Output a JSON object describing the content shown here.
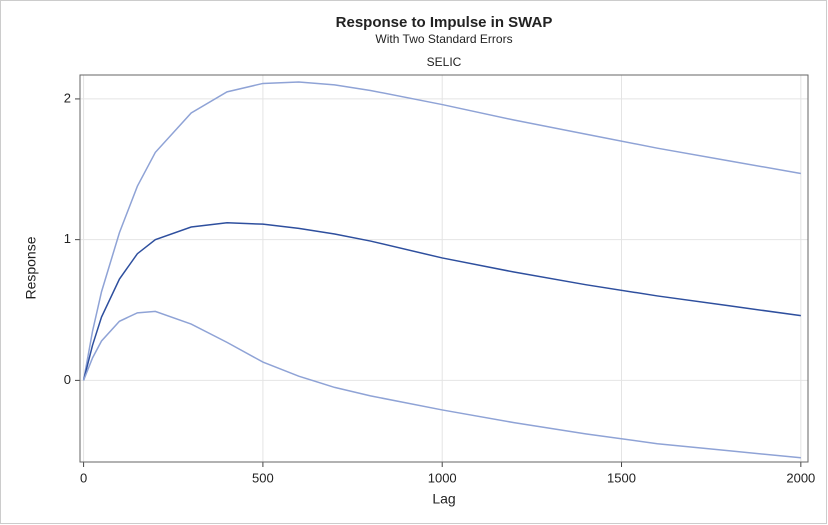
{
  "chart_data": {
    "type": "line",
    "title": "Response to Impulse in SWAP",
    "subtitle": "With Two Standard Errors",
    "panel_label": "SELIC",
    "x_label": "Lag",
    "y_label": "Response",
    "x": [
      0,
      25,
      50,
      100,
      150,
      200,
      300,
      400,
      500,
      600,
      700,
      800,
      1000,
      1200,
      1400,
      1600,
      1800,
      2000
    ],
    "series": [
      {
        "color": "#8fa3d6",
        "values": [
          0,
          0.35,
          0.63,
          1.05,
          1.38,
          1.62,
          1.9,
          2.05,
          2.11,
          2.12,
          2.1,
          2.06,
          1.96,
          1.85,
          1.75,
          1.65,
          1.56,
          1.47
        ]
      },
      {
        "color": "#2e4f9e",
        "values": [
          0,
          0.25,
          0.45,
          0.72,
          0.9,
          1.0,
          1.09,
          1.12,
          1.11,
          1.08,
          1.04,
          0.99,
          0.87,
          0.77,
          0.68,
          0.6,
          0.53,
          0.46
        ]
      },
      {
        "color": "#8fa3d6",
        "values": [
          0,
          0.16,
          0.28,
          0.42,
          0.48,
          0.49,
          0.4,
          0.27,
          0.13,
          0.03,
          -0.05,
          -0.11,
          -0.21,
          -0.3,
          -0.38,
          -0.45,
          -0.5,
          -0.55
        ]
      }
    ],
    "xlim": [
      -10,
      2020
    ],
    "xticks": [
      0,
      500,
      1000,
      1500,
      2000
    ],
    "ylim": [
      -0.58,
      2.17
    ],
    "yticks": [
      0,
      1,
      2
    ],
    "grid": true
  }
}
